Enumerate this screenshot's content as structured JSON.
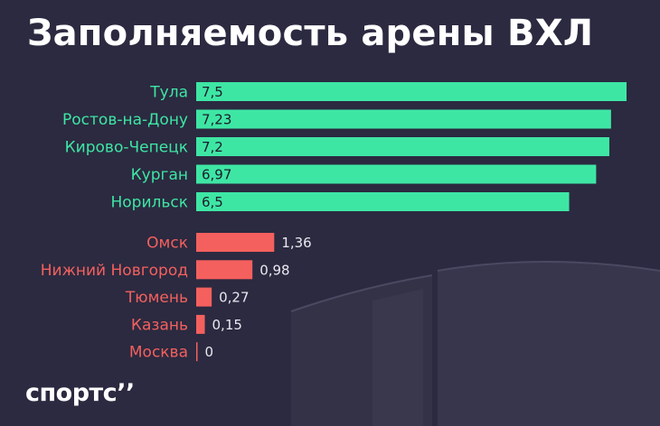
{
  "title": "Заполняемость арены ВХЛ",
  "logo": "спортс’’",
  "colors": {
    "background": "#2b2a40",
    "top_group": "#3ee6a4",
    "bottom_group": "#f4605e",
    "value_text_on_bar": "#1c1b2b",
    "value_text_outside": "#e9e8f0",
    "title": "#ffffff"
  },
  "chart_data": {
    "type": "bar",
    "orientation": "horizontal",
    "title": "Заполняемость арены ВХЛ",
    "xlabel": "",
    "ylabel": "",
    "xlim": [
      0,
      7.5
    ],
    "grid": false,
    "legend": "none",
    "groups": [
      {
        "color": "#3ee6a4",
        "categories": [
          "Тула",
          "Ростов-на-Дону",
          "Кирово-Чепецк",
          "Курган",
          "Норильск"
        ],
        "values": [
          7.5,
          7.23,
          7.2,
          6.97,
          6.5
        ],
        "value_labels": [
          "7,5",
          "7,23",
          "7,2",
          "6,97",
          "6,5"
        ]
      },
      {
        "color": "#f4605e",
        "categories": [
          "Омск",
          "Нижний Новгород",
          "Тюмень",
          "Казань",
          "Москва"
        ],
        "values": [
          1.36,
          0.98,
          0.27,
          0.15,
          0
        ],
        "value_labels": [
          "1,36",
          "0,98",
          "0,27",
          "0,15",
          "0"
        ]
      }
    ]
  }
}
